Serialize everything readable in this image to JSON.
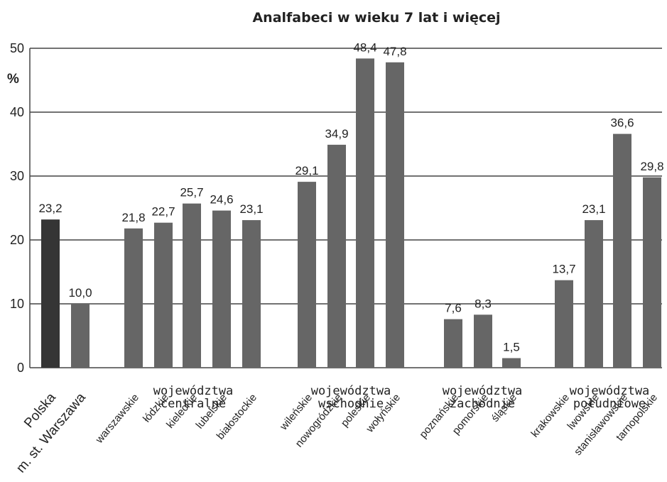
{
  "chart_data": {
    "type": "bar",
    "title": "Analfabeci w wieku 7 lat i więcej",
    "ylabel": "%",
    "ylim": [
      0,
      50
    ],
    "yticks": [
      "0",
      "10",
      "20",
      "30",
      "40",
      "50"
    ],
    "grid": true,
    "categories": [
      "Polska",
      "m. st. Warszawa",
      "warszawskie",
      "łódzkie",
      "kieleckie",
      "lubelskie",
      "białostockie",
      "wileńskie",
      "nowogródzkie",
      "poleskie",
      "wołyńskie",
      "poznańskie",
      "pomorskie",
      "śląskie",
      "krakowskie",
      "lwowskie",
      "stanisławowskie",
      "tarnopolskie"
    ],
    "values": [
      23.2,
      10.0,
      21.8,
      22.7,
      25.7,
      24.6,
      23.1,
      29.1,
      34.9,
      48.4,
      47.8,
      7.6,
      8.3,
      1.5,
      13.7,
      23.1,
      36.6,
      29.8
    ],
    "value_labels": [
      "23,2",
      "10,0",
      "21,8",
      "22,7",
      "25,7",
      "24,6",
      "23,1",
      "29,1",
      "34,9",
      "48,4",
      "47,8",
      "7,6",
      "8,3",
      "1,5",
      "13,7",
      "23,1",
      "36,6",
      "29,8"
    ],
    "groups": [
      {
        "line1": "województwa",
        "line2": "centralne"
      },
      {
        "line1": "województwa",
        "line2": "wschodnie"
      },
      {
        "line1": "województwa",
        "line2": "zachodnie"
      },
      {
        "line1": "województwa",
        "line2": "południowe"
      }
    ],
    "colors": {
      "highlight": "#353535",
      "bar": "#666666",
      "grid": "#444444"
    }
  }
}
